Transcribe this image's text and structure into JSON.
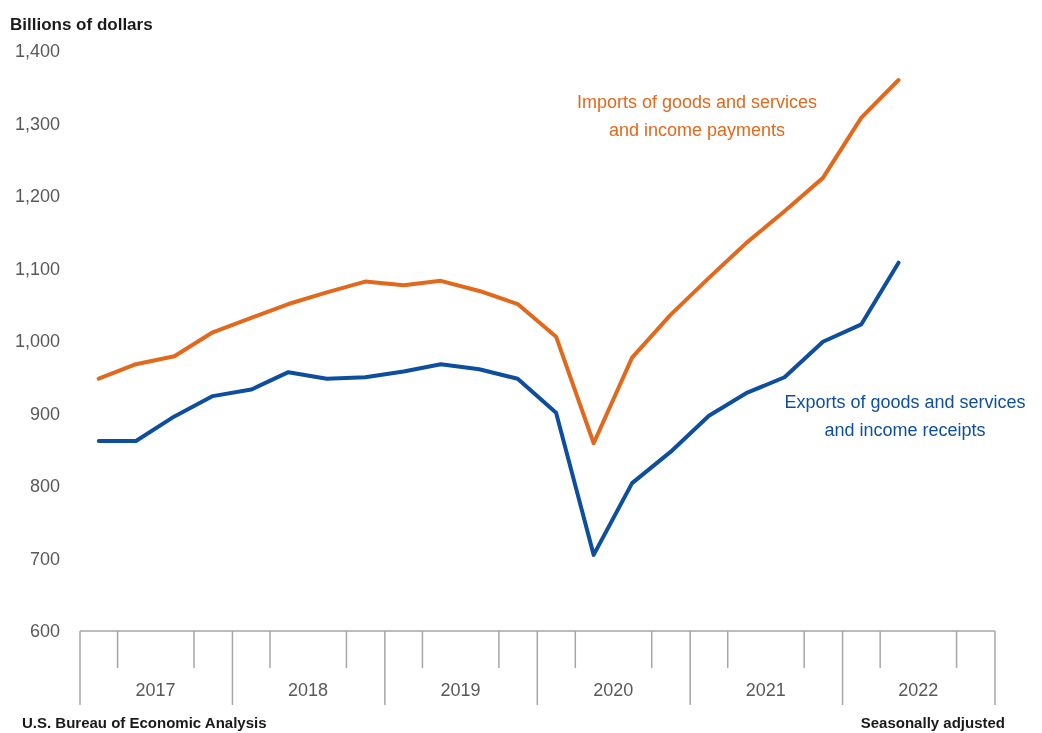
{
  "chart_data": {
    "type": "line",
    "ylabel": "Billions of dollars",
    "x": [
      "2017-02-15",
      "2017-05-15",
      "2017-08-15",
      "2017-11-15",
      "2018-02-15",
      "2018-05-15",
      "2018-08-15",
      "2018-11-15",
      "2019-02-15",
      "2019-05-15",
      "2019-08-15",
      "2019-11-15",
      "2020-02-15",
      "2020-05-15",
      "2020-08-15",
      "2020-11-15",
      "2021-02-15",
      "2021-05-15",
      "2021-08-15",
      "2021-11-15",
      "2022-02-15",
      "2022-05-15"
    ],
    "series": [
      {
        "name": "Imports of goods and services and income payments",
        "color": "#e2681c",
        "values": [
          948,
          968,
          979,
          1012,
          1032,
          1051,
          1067,
          1082,
          1077,
          1083,
          1069,
          1051,
          1006,
          859,
          977,
          1036,
          1087,
          1135,
          1179,
          1225,
          1308,
          1360
        ]
      },
      {
        "name": "Exports of goods and services and income receipts",
        "color": "#0d4f9e",
        "values": [
          862,
          862,
          896,
          924,
          933,
          957,
          948,
          950,
          958,
          968,
          961,
          948,
          901,
          705,
          804,
          847,
          897,
          928,
          950,
          999,
          1023,
          1108
        ]
      }
    ],
    "xlim": [
      "2017-01-01",
      "2023-01-01"
    ],
    "xticks": [
      {
        "value": "2017-01-01",
        "label": null
      },
      {
        "value": "2017-04-01",
        "label": null
      },
      {
        "value": "2017-07-01",
        "label": "2017"
      },
      {
        "value": "2017-10-01",
        "label": null
      },
      {
        "value": "2018-01-01",
        "label": null
      },
      {
        "value": "2018-04-01",
        "label": null
      },
      {
        "value": "2018-07-01",
        "label": "2018"
      },
      {
        "value": "2018-10-01",
        "label": null
      },
      {
        "value": "2019-01-01",
        "label": null
      },
      {
        "value": "2019-04-01",
        "label": null
      },
      {
        "value": "2019-07-01",
        "label": "2019"
      },
      {
        "value": "2019-10-01",
        "label": null
      },
      {
        "value": "2020-01-01",
        "label": null
      },
      {
        "value": "2020-04-01",
        "label": null
      },
      {
        "value": "2020-07-01",
        "label": "2020"
      },
      {
        "value": "2020-10-01",
        "label": null
      },
      {
        "value": "2021-01-01",
        "label": null
      },
      {
        "value": "2021-04-01",
        "label": null
      },
      {
        "value": "2021-07-01",
        "label": "2021"
      },
      {
        "value": "2021-10-01",
        "label": null
      },
      {
        "value": "2022-01-01",
        "label": null
      },
      {
        "value": "2022-04-01",
        "label": null
      },
      {
        "value": "2022-07-01",
        "label": "2022"
      },
      {
        "value": "2022-10-01",
        "label": null
      },
      {
        "value": "2023-01-01",
        "label": null
      }
    ],
    "ylim": [
      600,
      1400
    ],
    "yticks": [
      600,
      700,
      800,
      900,
      {
        "value": 1000,
        "label": "1,000"
      },
      {
        "value": 1100,
        "label": "1,100"
      },
      {
        "value": 1200,
        "label": "1,200"
      },
      {
        "value": 1300,
        "label": "1,300"
      },
      {
        "value": 1400,
        "label": "1,400"
      }
    ],
    "grid": false,
    "legend": false,
    "line_style": "solid",
    "annotations": [
      "U.S. Bureau of Economic Analysis",
      "Seasonally adjusted"
    ]
  }
}
